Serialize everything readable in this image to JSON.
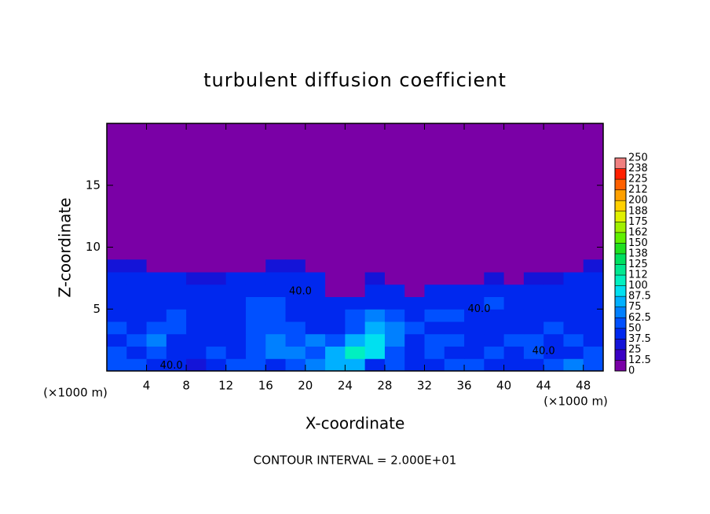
{
  "chart_data": {
    "type": "heatmap",
    "title": "turbulent diffusion coefficient",
    "x_label": "X-coordinate",
    "y_label": "Z-coordinate",
    "x_unit": "(×1000 m)",
    "footer": "CONTOUR INTERVAL = 2.000E+01",
    "xlim": [
      0,
      50
    ],
    "ylim": [
      0,
      20
    ],
    "xticks": [
      4,
      8,
      12,
      16,
      20,
      24,
      28,
      32,
      36,
      40,
      44,
      48
    ],
    "yticks": [
      5,
      10,
      15
    ],
    "x": [
      1,
      3,
      5,
      7,
      9,
      11,
      13,
      15,
      17,
      19,
      21,
      23,
      25,
      27,
      29,
      31,
      33,
      35,
      37,
      39,
      41,
      43,
      45,
      47,
      49
    ],
    "y": [
      0.5,
      1.5,
      2.5,
      3.5,
      4.5,
      5.5,
      6.5,
      7.5,
      8.5
    ],
    "z": [
      [
        50,
        62,
        45,
        40,
        30,
        45,
        55,
        50,
        48,
        60,
        70,
        75,
        80,
        45,
        50,
        40,
        45,
        55,
        50,
        45,
        48,
        42,
        50,
        70,
        55
      ],
      [
        60,
        45,
        50,
        40,
        45,
        50,
        45,
        55,
        65,
        70,
        60,
        80,
        100,
        90,
        55,
        40,
        50,
        45,
        48,
        55,
        45,
        50,
        48,
        45,
        60
      ],
      [
        45,
        55,
        65,
        45,
        40,
        48,
        42,
        60,
        70,
        55,
        65,
        50,
        85,
        95,
        70,
        45,
        60,
        50,
        45,
        48,
        50,
        55,
        45,
        50,
        45
      ],
      [
        50,
        45,
        60,
        50,
        42,
        45,
        48,
        55,
        60,
        50,
        45,
        45,
        60,
        75,
        65,
        50,
        45,
        48,
        42,
        45,
        48,
        45,
        50,
        48,
        45
      ],
      [
        42,
        45,
        48,
        55,
        45,
        40,
        45,
        60,
        55,
        48,
        45,
        45,
        55,
        65,
        55,
        45,
        50,
        55,
        45,
        48,
        45,
        45,
        42,
        45,
        48
      ],
      [
        45,
        40,
        45,
        48,
        42,
        45,
        40,
        55,
        50,
        48,
        40,
        42,
        48,
        45,
        45,
        48,
        42,
        40,
        45,
        50,
        45,
        42,
        45,
        40,
        45
      ],
      [
        40,
        45,
        42,
        40,
        45,
        38,
        42,
        48,
        45,
        40,
        45,
        0,
        0,
        40,
        42,
        0,
        40,
        42,
        45,
        40,
        45,
        40,
        42,
        45,
        40
      ],
      [
        45,
        42,
        40,
        38,
        35,
        30,
        40,
        42,
        45,
        40,
        38,
        0,
        0,
        30,
        0,
        0,
        0,
        0,
        0,
        30,
        0,
        30,
        35,
        40,
        42
      ],
      [
        30,
        25,
        0,
        0,
        0,
        0,
        0,
        0,
        30,
        30,
        0,
        0,
        0,
        0,
        0,
        0,
        0,
        0,
        0,
        0,
        0,
        0,
        0,
        0,
        30
      ]
    ],
    "levels": [
      0,
      12.5,
      25,
      37.5,
      50,
      62.5,
      75,
      87.5,
      100,
      {
        "value": 112.5,
        "label": "112"
      },
      125,
      {
        "value": 137.5,
        "label": "138"
      },
      150,
      {
        "value": 162.5,
        "label": "162"
      },
      175,
      {
        "value": 187.5,
        "label": "188"
      },
      200,
      {
        "value": 212.5,
        "label": "212"
      },
      225,
      {
        "value": 237.5,
        "label": "238"
      },
      250
    ],
    "colors": [
      "#7a00a6",
      "#3a00c4",
      "#1414d8",
      "#0028ee",
      "#0050ff",
      "#0080ff",
      "#00b0ff",
      "#00e0f0",
      "#00f0c0",
      "#00e890",
      "#00e060",
      "#20e020",
      "#60f000",
      "#a0f000",
      "#e0f000",
      "#ffd000",
      "#ffa000",
      "#ff6000",
      "#ff2000",
      "#f08080"
    ],
    "annotations": [
      {
        "text": "40.0",
        "x": 6.5,
        "y": 0.4
      },
      {
        "text": "40.0",
        "x": 44,
        "y": 1.6
      },
      {
        "text": "40.0",
        "x": 37.5,
        "y": 5
      },
      {
        "text": "40.0",
        "x": 19.5,
        "y": 6.4
      }
    ]
  }
}
